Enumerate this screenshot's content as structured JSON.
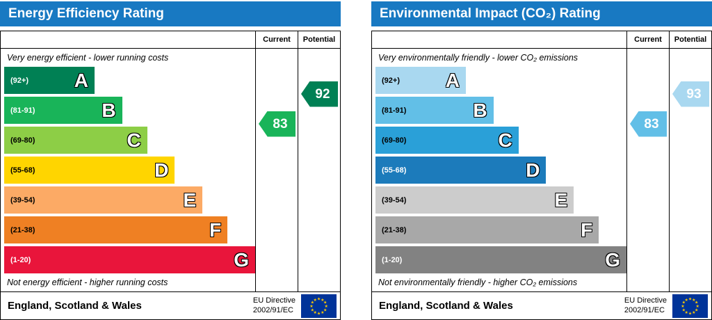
{
  "theme": {
    "header_bg": "#1879c2",
    "header_text": "#ffffff",
    "border": "#000000",
    "eu_flag_bg": "#003399",
    "eu_flag_star": "#ffcc00"
  },
  "charts": [
    {
      "title": "Energy Efficiency Rating",
      "columns": {
        "current": "Current",
        "potential": "Potential"
      },
      "top_caption": "Very energy efficient - lower running costs",
      "bottom_caption": "Not energy efficient - higher running costs",
      "bands": [
        {
          "letter": "A",
          "range": "(92+)",
          "color": "#008054",
          "range_text_color": "#ffffff",
          "width_pct": 36
        },
        {
          "letter": "B",
          "range": "(81-91)",
          "color": "#19b459",
          "range_text_color": "#ffffff",
          "width_pct": 47
        },
        {
          "letter": "C",
          "range": "(69-80)",
          "color": "#8dce46",
          "range_text_color": "#000000",
          "width_pct": 57
        },
        {
          "letter": "D",
          "range": "(55-68)",
          "color": "#ffd500",
          "range_text_color": "#000000",
          "width_pct": 68
        },
        {
          "letter": "E",
          "range": "(39-54)",
          "color": "#fcaa65",
          "range_text_color": "#000000",
          "width_pct": 79
        },
        {
          "letter": "F",
          "range": "(21-38)",
          "color": "#ef8023",
          "range_text_color": "#000000",
          "width_pct": 89
        },
        {
          "letter": "G",
          "range": "(1-20)",
          "color": "#e9153b",
          "range_text_color": "#ffffff",
          "width_pct": 100
        }
      ],
      "current": {
        "value": "83",
        "band": "B",
        "color": "#19b459"
      },
      "potential": {
        "value": "92",
        "band": "A",
        "color": "#008054"
      },
      "footer": {
        "region": "England, Scotland & Wales",
        "directive_line1": "EU Directive",
        "directive_line2": "2002/91/EC"
      }
    },
    {
      "title": "Environmental Impact (CO₂) Rating",
      "columns": {
        "current": "Current",
        "potential": "Potential"
      },
      "top_caption": "Very environmentally friendly - lower CO₂ emissions",
      "bottom_caption": "Not environmentally friendly - higher CO₂ emissions",
      "bands": [
        {
          "letter": "A",
          "range": "(92+)",
          "color": "#a9d8f0",
          "range_text_color": "#000000",
          "width_pct": 36
        },
        {
          "letter": "B",
          "range": "(81-91)",
          "color": "#62bfe7",
          "range_text_color": "#000000",
          "width_pct": 47
        },
        {
          "letter": "C",
          "range": "(69-80)",
          "color": "#2aa0d8",
          "range_text_color": "#000000",
          "width_pct": 57
        },
        {
          "letter": "D",
          "range": "(55-68)",
          "color": "#1c7bbb",
          "range_text_color": "#ffffff",
          "width_pct": 68
        },
        {
          "letter": "E",
          "range": "(39-54)",
          "color": "#cccccc",
          "range_text_color": "#000000",
          "width_pct": 79
        },
        {
          "letter": "F",
          "range": "(21-38)",
          "color": "#a8a8a8",
          "range_text_color": "#000000",
          "width_pct": 89
        },
        {
          "letter": "G",
          "range": "(1-20)",
          "color": "#828282",
          "range_text_color": "#ffffff",
          "width_pct": 100
        }
      ],
      "current": {
        "value": "83",
        "band": "B",
        "color": "#62bfe7"
      },
      "potential": {
        "value": "93",
        "band": "A",
        "color": "#a9d8f0"
      },
      "footer": {
        "region": "England, Scotland & Wales",
        "directive_line1": "EU Directive",
        "directive_line2": "2002/91/EC"
      }
    }
  ],
  "chart_data": [
    {
      "type": "bar",
      "title": "Energy Efficiency Rating",
      "categories": [
        "A (92+)",
        "B (81-91)",
        "C (69-80)",
        "D (55-68)",
        "E (39-54)",
        "F (21-38)",
        "G (1-20)"
      ],
      "values": [
        36,
        47,
        57,
        68,
        79,
        89,
        100
      ],
      "current_rating": 83,
      "current_band": "B",
      "potential_rating": 92,
      "potential_band": "A",
      "xlabel": "",
      "ylabel": "",
      "legend": [
        "Current",
        "Potential"
      ],
      "annotations": [
        "Very energy efficient - lower running costs",
        "Not energy efficient - higher running costs",
        "England, Scotland & Wales",
        "EU Directive 2002/91/EC"
      ]
    },
    {
      "type": "bar",
      "title": "Environmental Impact (CO₂) Rating",
      "categories": [
        "A (92+)",
        "B (81-91)",
        "C (69-80)",
        "D (55-68)",
        "E (39-54)",
        "F (21-38)",
        "G (1-20)"
      ],
      "values": [
        36,
        47,
        57,
        68,
        79,
        89,
        100
      ],
      "current_rating": 83,
      "current_band": "B",
      "potential_rating": 93,
      "potential_band": "A",
      "xlabel": "",
      "ylabel": "",
      "legend": [
        "Current",
        "Potential"
      ],
      "annotations": [
        "Very environmentally friendly - lower CO₂ emissions",
        "Not environmentally friendly - higher CO₂ emissions",
        "England, Scotland & Wales",
        "EU Directive 2002/91/EC"
      ]
    }
  ]
}
